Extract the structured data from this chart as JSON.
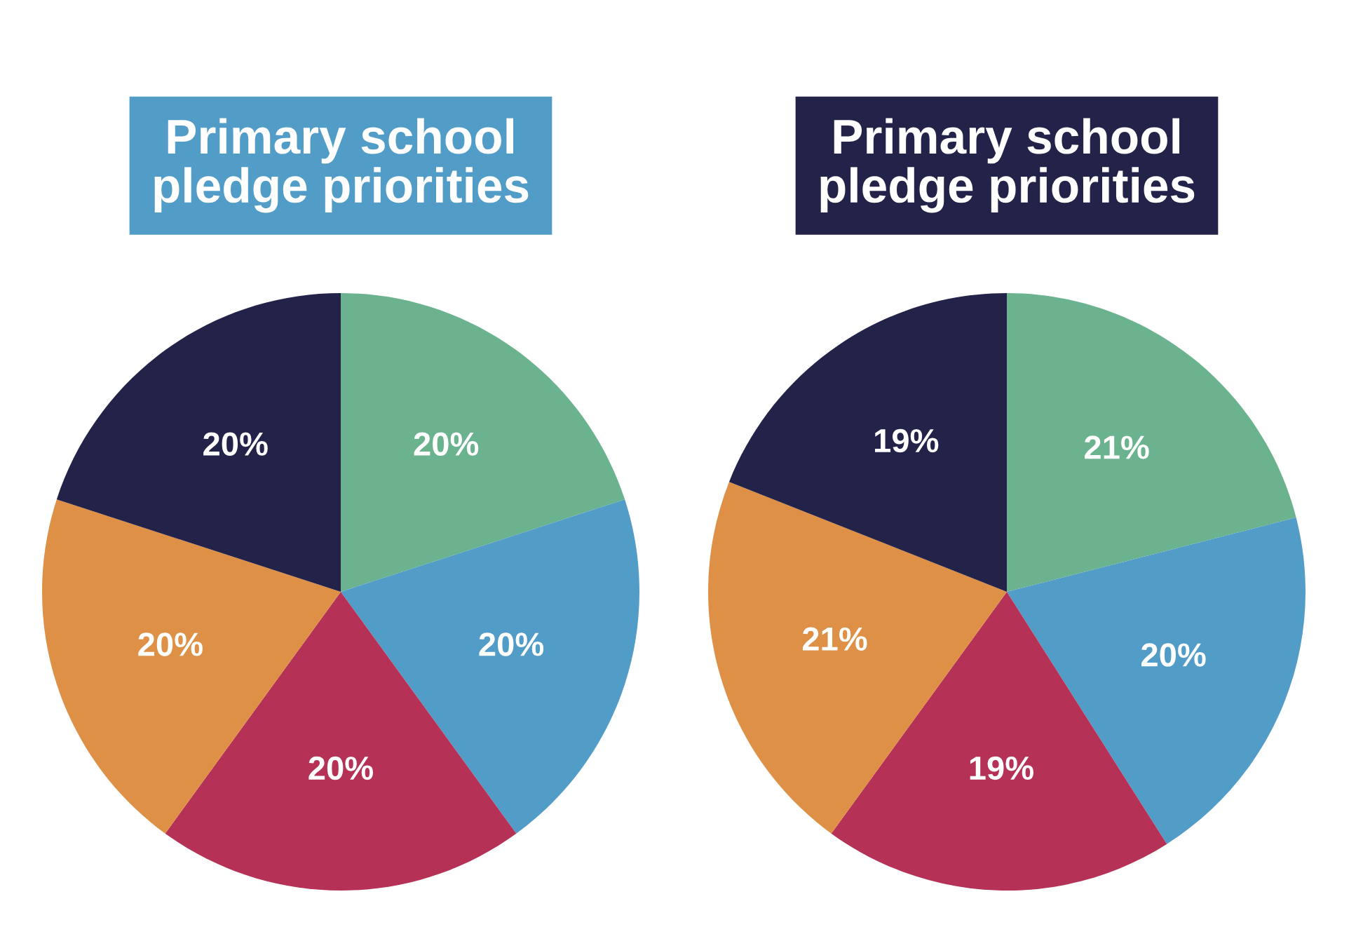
{
  "chart_data": [
    {
      "type": "pie",
      "title": "Primary school\npledge priorities",
      "categories": [
        null,
        null,
        null,
        null,
        null
      ],
      "values": [
        20,
        20,
        20,
        20,
        20
      ],
      "value_labels": [
        "20%",
        "20%",
        "20%",
        "20%",
        "20%"
      ],
      "colors": [
        "#6bb28f",
        "#529cc8",
        "#b53156",
        "#de9146",
        "#232249"
      ]
    },
    {
      "type": "pie",
      "title": "Primary school\npledge priorities",
      "categories": [
        null,
        null,
        null,
        null,
        null
      ],
      "values": [
        21,
        20,
        19,
        21,
        19
      ],
      "value_labels": [
        "21%",
        "20%",
        "19%",
        "21%",
        "19%"
      ],
      "colors": [
        "#6bb28f",
        "#529cc8",
        "#b53156",
        "#de9146",
        "#232249"
      ]
    }
  ]
}
